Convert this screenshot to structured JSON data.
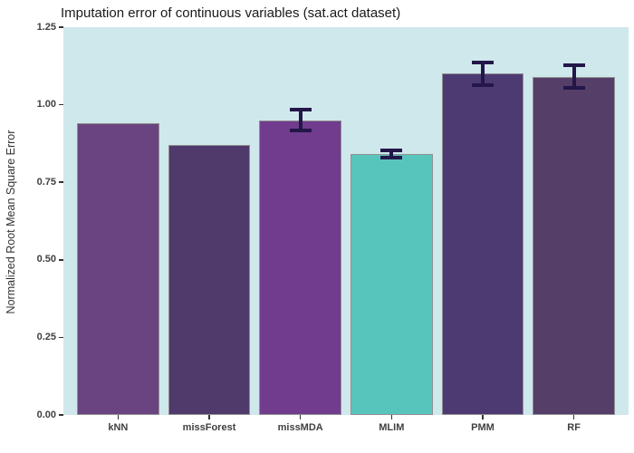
{
  "title": "Imputation error of continuous variables (sat.act dataset)",
  "chart_data": {
    "type": "bar",
    "title": "Imputation error of continuous variables (sat.act dataset)",
    "xlabel": "",
    "ylabel": "Normalized Root Mean Square Error",
    "categories": [
      "kNN",
      "missForest",
      "missMDA",
      "MLIM",
      "PMM",
      "RF"
    ],
    "values": [
      0.94,
      0.87,
      0.95,
      0.84,
      1.1,
      1.09
    ],
    "error_bars": [
      null,
      null,
      0.033,
      0.012,
      0.036,
      0.036
    ],
    "bar_colors": [
      "#6A4480",
      "#50396B",
      "#713C8E",
      "#58C5BC",
      "#4D3A72",
      "#553E68"
    ],
    "bar_border_color": "#909090",
    "error_bar_color": "#231649",
    "panel_background": "#CFE8EC",
    "outer_background": "#FFFFFF",
    "ylim": [
      0,
      1.25
    ],
    "yticks": [
      0.0,
      0.25,
      0.5,
      0.75,
      1.0,
      1.25
    ],
    "ytick_labels": [
      "0.00",
      "0.25",
      "0.50",
      "0.75",
      "1.00",
      "1.25"
    ],
    "grid": false,
    "legend_position": "none"
  }
}
